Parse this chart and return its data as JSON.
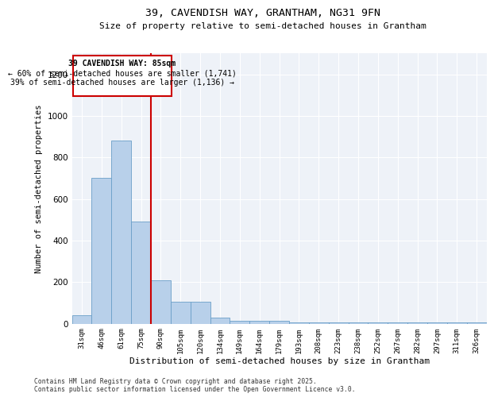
{
  "title1": "39, CAVENDISH WAY, GRANTHAM, NG31 9FN",
  "title2": "Size of property relative to semi-detached houses in Grantham",
  "xlabel": "Distribution of semi-detached houses by size in Grantham",
  "ylabel": "Number of semi-detached properties",
  "categories": [
    "31sqm",
    "46sqm",
    "61sqm",
    "75sqm",
    "90sqm",
    "105sqm",
    "120sqm",
    "134sqm",
    "149sqm",
    "164sqm",
    "179sqm",
    "193sqm",
    "208sqm",
    "223sqm",
    "238sqm",
    "252sqm",
    "267sqm",
    "282sqm",
    "297sqm",
    "311sqm",
    "326sqm"
  ],
  "values": [
    40,
    700,
    880,
    490,
    210,
    105,
    105,
    30,
    15,
    15,
    15,
    5,
    5,
    5,
    5,
    5,
    5,
    5,
    5,
    5,
    5
  ],
  "bar_color": "#b8d0ea",
  "bar_edge_color": "#6a9fc8",
  "vline_color": "#cc0000",
  "vline_x": 3.5,
  "annotation_title": "39 CAVENDISH WAY: 85sqm",
  "annotation_line1": "← 60% of semi-detached houses are smaller (1,741)",
  "annotation_line2": "39% of semi-detached houses are larger (1,136) →",
  "annotation_box_color": "#cc0000",
  "ylim": [
    0,
    1300
  ],
  "yticks": [
    0,
    200,
    400,
    600,
    800,
    1000,
    1200
  ],
  "footnote1": "Contains HM Land Registry data © Crown copyright and database right 2025.",
  "footnote2": "Contains public sector information licensed under the Open Government Licence v3.0.",
  "bg_color": "#eef2f8"
}
